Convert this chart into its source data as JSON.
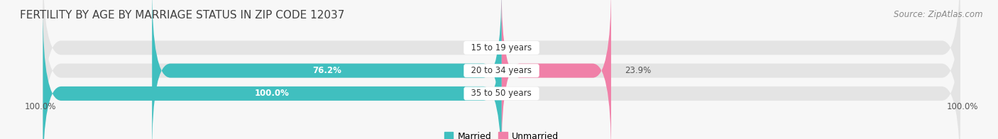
{
  "title": "FERTILITY BY AGE BY MARRIAGE STATUS IN ZIP CODE 12037",
  "source": "Source: ZipAtlas.com",
  "age_groups": [
    "15 to 19 years",
    "20 to 34 years",
    "35 to 50 years"
  ],
  "married_values": [
    0.0,
    76.2,
    100.0
  ],
  "unmarried_values": [
    0.0,
    23.9,
    0.0
  ],
  "married_color": "#40bfbf",
  "unmarried_color": "#f080a8",
  "bar_bg_color": "#e4e4e4",
  "bar_height": 0.62,
  "bar_gap": 0.18,
  "max_bar_width": 100.0,
  "title_fontsize": 11,
  "source_fontsize": 8.5,
  "label_fontsize": 8.5,
  "tick_fontsize": 8.5,
  "legend_fontsize": 9,
  "background_color": "#f7f7f7",
  "left_axis_label": "100.0%",
  "right_axis_label": "100.0%",
  "title_color": "#404040",
  "label_color_inside": "#ffffff",
  "label_color_outside": "#555555",
  "source_color": "#888888",
  "axis_label_color": "#555555"
}
